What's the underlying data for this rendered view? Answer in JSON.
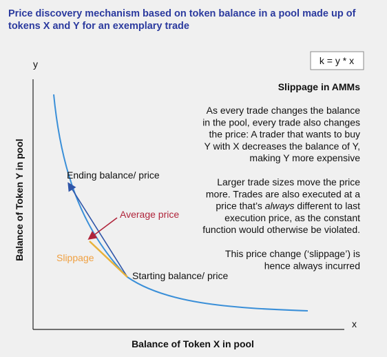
{
  "header": {
    "title_lines": [
      "Price discovery mechanism based on token balance in a pool made up of",
      "tokens X and Y for an exemplary trade"
    ]
  },
  "axes": {
    "y_symbol": "y",
    "x_symbol": "x",
    "y_label": "Balance of Token Y in pool",
    "x_label": "Balance of Token X in pool"
  },
  "formula": "k = y * x",
  "annotations": {
    "ending": "Ending balance/ price",
    "average": "Average price",
    "slippage": "Slippage",
    "starting": "Starting balance/ price"
  },
  "panel": {
    "heading": "Slippage in AMMs",
    "paragraphs": [
      [
        "As every trade changes the balance",
        "in the pool, every trade also changes",
        "the price: A trader that wants to buy",
        "Y with X decreases the balance of Y,",
        "making Y more expensive"
      ],
      [
        "Larger trade sizes move the price",
        "more. Trades are also executed at a",
        [
          "price that’s ",
          "always",
          " different to last"
        ],
        "execution price, as the constant",
        "function would otherwise be violated."
      ],
      [
        "This price change (‘slippage’) is",
        "hence always incurred"
      ]
    ]
  }
}
